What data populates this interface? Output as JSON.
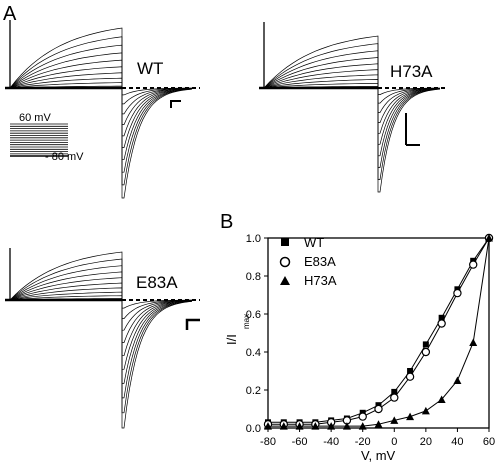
{
  "panel_a": {
    "letter": "A",
    "traces": [
      {
        "label": "WT"
      },
      {
        "label": "H73A"
      },
      {
        "label": "E83A"
      }
    ],
    "protocol": {
      "top_label": "60 mV",
      "bottom_label": "- 80 mV"
    }
  },
  "panel_b": {
    "letter": "B"
  },
  "chart_data": {
    "type": "scatter",
    "xlabel": "V, mV",
    "ylabel": "I/I",
    "ylabel_sub": "max",
    "xlim": [
      -80,
      60
    ],
    "ylim": [
      0,
      1.0
    ],
    "x_ticks": [
      "-80",
      "-60",
      "-40",
      "-20",
      "0",
      "20",
      "40",
      "60"
    ],
    "y_ticks": [
      "0.0",
      "0.2",
      "0.4",
      "0.6",
      "0.8",
      "1.0"
    ],
    "legend_position": "top-left",
    "x": [
      -80,
      -70,
      -60,
      -50,
      -40,
      -30,
      -20,
      -10,
      0,
      10,
      20,
      30,
      40,
      50,
      60
    ],
    "series": [
      {
        "name": "WT",
        "marker": "filled-square",
        "values": [
          0.03,
          0.03,
          0.03,
          0.03,
          0.04,
          0.05,
          0.08,
          0.12,
          0.19,
          0.3,
          0.44,
          0.58,
          0.73,
          0.88,
          1.0
        ]
      },
      {
        "name": "E83A",
        "marker": "open-circle",
        "values": [
          0.02,
          0.02,
          0.02,
          0.02,
          0.03,
          0.04,
          0.06,
          0.1,
          0.16,
          0.27,
          0.4,
          0.55,
          0.71,
          0.86,
          1.0
        ]
      },
      {
        "name": "H73A",
        "marker": "filled-triangle",
        "values": [
          0.01,
          0.01,
          0.01,
          0.01,
          0.01,
          0.01,
          0.01,
          0.02,
          0.04,
          0.06,
          0.09,
          0.15,
          0.25,
          0.45,
          1.0
        ]
      }
    ]
  }
}
